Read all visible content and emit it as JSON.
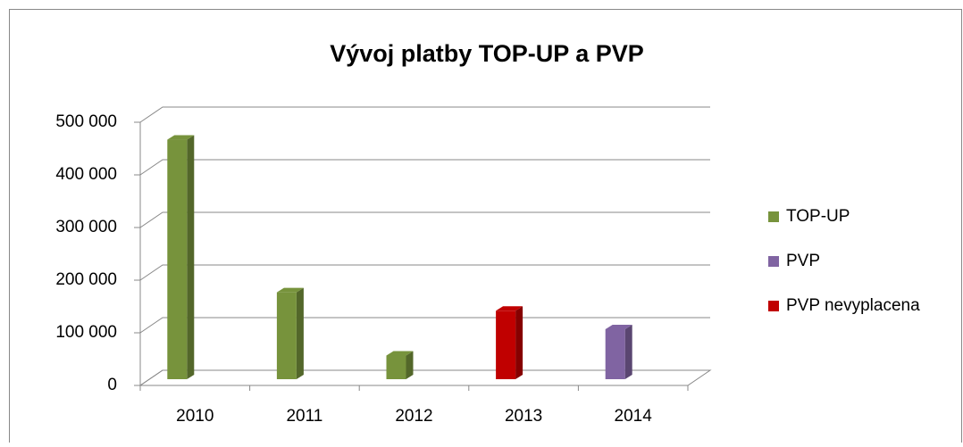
{
  "chart_data": {
    "type": "bar3d",
    "title": "Vývoj platby TOP-UP a PVP",
    "categories": [
      "2010",
      "2011",
      "2012",
      "2013",
      "2014"
    ],
    "series": [
      {
        "name": "TOP-UP",
        "color": "#77933c",
        "values": [
          455000,
          165000,
          45000,
          null,
          null
        ]
      },
      {
        "name": "PVP",
        "color": "#8064a2",
        "values": [
          null,
          null,
          null,
          null,
          95000
        ]
      },
      {
        "name": "PVP nevyplacena",
        "color": "#c00000",
        "values": [
          null,
          null,
          null,
          130000,
          null
        ]
      }
    ],
    "ylim": [
      0,
      500000
    ],
    "yticks": [
      0,
      {
        "value": 100000,
        "label": "100 000"
      },
      {
        "value": 200000,
        "label": "200 000"
      },
      {
        "value": 300000,
        "label": "300 000"
      },
      {
        "value": 400000,
        "label": "400 000"
      },
      {
        "value": 500000,
        "label": "500 000"
      }
    ],
    "grid": true,
    "legend": "right"
  }
}
